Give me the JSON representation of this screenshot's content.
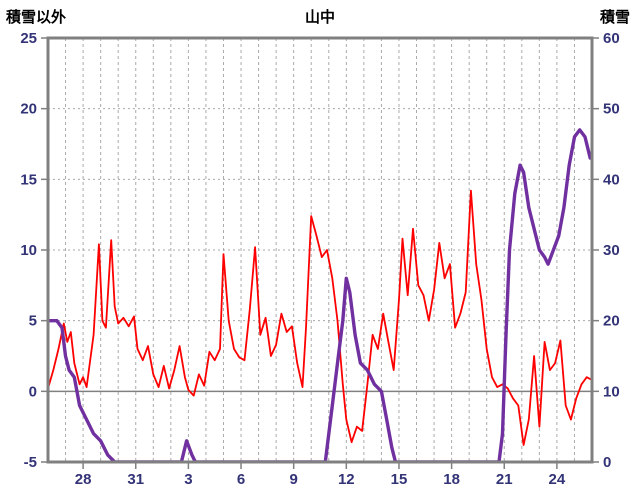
{
  "chart_data": {
    "type": "line",
    "title": "山中",
    "grid": true,
    "legend": "none",
    "colors": {
      "series_other": "#ff0000",
      "series_snow": "#7030a0",
      "border": "#808080",
      "grid": "#aaaaaa",
      "tick_label": "#333377",
      "title": "#000000"
    },
    "left_axis": {
      "label": "積雪以外",
      "min": -5,
      "max": 25,
      "ticks": [
        25,
        20,
        15,
        10,
        5,
        0,
        -5
      ]
    },
    "right_axis": {
      "label": "積雪",
      "min": 0,
      "max": 60,
      "ticks": [
        60,
        50,
        40,
        30,
        20,
        10,
        0
      ]
    },
    "x_axis": {
      "min": 0,
      "max": 31,
      "grid_step": 1,
      "tick_labels": [
        "28",
        "31",
        "3",
        "6",
        "9",
        "12",
        "15",
        "18",
        "21",
        "24"
      ],
      "tick_positions": [
        2,
        5,
        8,
        11,
        14,
        17,
        20,
        23,
        26,
        29
      ]
    },
    "series": [
      {
        "name": "積雪以外",
        "axis": "left",
        "color": "#ff0000",
        "width": 1.8,
        "points": [
          [
            0,
            0.2
          ],
          [
            0.3,
            1.5
          ],
          [
            0.6,
            3.0
          ],
          [
            0.9,
            4.8
          ],
          [
            1.1,
            3.5
          ],
          [
            1.3,
            4.2
          ],
          [
            1.5,
            2.0
          ],
          [
            1.8,
            0.5
          ],
          [
            2.0,
            1.0
          ],
          [
            2.2,
            0.3
          ],
          [
            2.6,
            4.0
          ],
          [
            2.9,
            10.4
          ],
          [
            3.1,
            5.0
          ],
          [
            3.3,
            4.5
          ],
          [
            3.6,
            10.7
          ],
          [
            3.8,
            6.0
          ],
          [
            4.0,
            4.8
          ],
          [
            4.3,
            5.2
          ],
          [
            4.6,
            4.6
          ],
          [
            4.9,
            5.3
          ],
          [
            5.1,
            3.0
          ],
          [
            5.4,
            2.2
          ],
          [
            5.7,
            3.2
          ],
          [
            6.0,
            1.2
          ],
          [
            6.3,
            0.3
          ],
          [
            6.6,
            1.8
          ],
          [
            6.9,
            0.2
          ],
          [
            7.2,
            1.5
          ],
          [
            7.5,
            3.2
          ],
          [
            7.8,
            1.0
          ],
          [
            8.0,
            0.1
          ],
          [
            8.3,
            -0.3
          ],
          [
            8.6,
            1.2
          ],
          [
            8.9,
            0.4
          ],
          [
            9.2,
            2.8
          ],
          [
            9.5,
            2.2
          ],
          [
            9.8,
            3.0
          ],
          [
            10.0,
            9.7
          ],
          [
            10.3,
            5.0
          ],
          [
            10.6,
            3.0
          ],
          [
            10.9,
            2.4
          ],
          [
            11.2,
            2.2
          ],
          [
            11.5,
            5.8
          ],
          [
            11.8,
            10.2
          ],
          [
            12.1,
            4.0
          ],
          [
            12.4,
            5.2
          ],
          [
            12.7,
            2.5
          ],
          [
            13.0,
            3.3
          ],
          [
            13.3,
            5.5
          ],
          [
            13.6,
            4.2
          ],
          [
            13.9,
            4.6
          ],
          [
            14.2,
            2.0
          ],
          [
            14.5,
            0.3
          ],
          [
            14.7,
            4.5
          ],
          [
            15.0,
            12.4
          ],
          [
            15.3,
            11.0
          ],
          [
            15.6,
            9.5
          ],
          [
            15.9,
            10.0
          ],
          [
            16.2,
            8.0
          ],
          [
            16.5,
            5.0
          ],
          [
            16.8,
            0.5
          ],
          [
            17.0,
            -2.0
          ],
          [
            17.3,
            -3.6
          ],
          [
            17.6,
            -2.5
          ],
          [
            17.9,
            -2.8
          ],
          [
            18.2,
            0.5
          ],
          [
            18.5,
            4.0
          ],
          [
            18.8,
            3.0
          ],
          [
            19.1,
            5.5
          ],
          [
            19.4,
            3.5
          ],
          [
            19.7,
            1.5
          ],
          [
            20.0,
            6.5
          ],
          [
            20.2,
            10.8
          ],
          [
            20.5,
            6.8
          ],
          [
            20.8,
            11.5
          ],
          [
            21.1,
            7.5
          ],
          [
            21.4,
            6.8
          ],
          [
            21.7,
            5.0
          ],
          [
            22.0,
            7.2
          ],
          [
            22.3,
            10.5
          ],
          [
            22.6,
            8.0
          ],
          [
            22.9,
            9.0
          ],
          [
            23.2,
            4.5
          ],
          [
            23.5,
            5.5
          ],
          [
            23.8,
            7.0
          ],
          [
            24.1,
            14.2
          ],
          [
            24.4,
            9.0
          ],
          [
            24.7,
            6.5
          ],
          [
            25.0,
            3.0
          ],
          [
            25.3,
            1.0
          ],
          [
            25.6,
            0.3
          ],
          [
            25.9,
            0.5
          ],
          [
            26.2,
            0.2
          ],
          [
            26.5,
            -0.5
          ],
          [
            26.8,
            -1.0
          ],
          [
            27.1,
            -3.8
          ],
          [
            27.4,
            -2.0
          ],
          [
            27.7,
            2.5
          ],
          [
            28.0,
            -2.5
          ],
          [
            28.3,
            3.5
          ],
          [
            28.6,
            1.5
          ],
          [
            28.9,
            2.0
          ],
          [
            29.2,
            3.6
          ],
          [
            29.5,
            -1.0
          ],
          [
            29.8,
            -2.0
          ],
          [
            30.1,
            -0.5
          ],
          [
            30.4,
            0.5
          ],
          [
            30.7,
            1.0
          ],
          [
            31,
            0.8
          ]
        ]
      },
      {
        "name": "積雪",
        "axis": "right",
        "color": "#7030a0",
        "width": 3.4,
        "points": [
          [
            0,
            20
          ],
          [
            0.5,
            20
          ],
          [
            0.8,
            19
          ],
          [
            1.0,
            15
          ],
          [
            1.2,
            13
          ],
          [
            1.5,
            12
          ],
          [
            1.8,
            8
          ],
          [
            2.2,
            6
          ],
          [
            2.6,
            4
          ],
          [
            3.0,
            3
          ],
          [
            3.4,
            1
          ],
          [
            3.8,
            0
          ],
          [
            7.6,
            0
          ],
          [
            7.9,
            3
          ],
          [
            8.2,
            1
          ],
          [
            8.4,
            0
          ],
          [
            15.8,
            0
          ],
          [
            16.2,
            8
          ],
          [
            16.5,
            14
          ],
          [
            16.8,
            20
          ],
          [
            17.0,
            26
          ],
          [
            17.2,
            24
          ],
          [
            17.5,
            18
          ],
          [
            17.8,
            14
          ],
          [
            18.2,
            13
          ],
          [
            18.6,
            11
          ],
          [
            19.0,
            10
          ],
          [
            19.3,
            6
          ],
          [
            19.6,
            2
          ],
          [
            19.8,
            0
          ],
          [
            25.7,
            0
          ],
          [
            25.9,
            4
          ],
          [
            26.1,
            18
          ],
          [
            26.3,
            30
          ],
          [
            26.6,
            38
          ],
          [
            26.9,
            42
          ],
          [
            27.1,
            41
          ],
          [
            27.4,
            36
          ],
          [
            27.7,
            33
          ],
          [
            28.0,
            30
          ],
          [
            28.3,
            29
          ],
          [
            28.5,
            28
          ],
          [
            28.8,
            30
          ],
          [
            29.1,
            32
          ],
          [
            29.4,
            36
          ],
          [
            29.7,
            42
          ],
          [
            30.0,
            46
          ],
          [
            30.3,
            47
          ],
          [
            30.6,
            46
          ],
          [
            30.9,
            43
          ],
          [
            31,
            43
          ]
        ]
      }
    ]
  }
}
